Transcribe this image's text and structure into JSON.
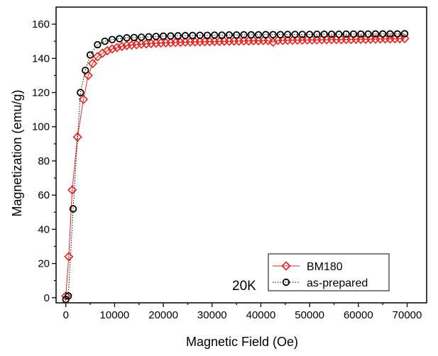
{
  "chart_data": {
    "type": "line",
    "xlabel": "Magnetic Field (Oe)",
    "ylabel": "Magnetization (emu/g)",
    "xlim": [
      -2000,
      74000
    ],
    "ylim": [
      -3,
      170
    ],
    "xticks": [
      0,
      10000,
      20000,
      30000,
      40000,
      50000,
      60000,
      70000
    ],
    "yticks": [
      0,
      20,
      40,
      60,
      80,
      100,
      120,
      140,
      160
    ],
    "annotation": "20K",
    "legend_position": "bottom-right",
    "grid": false,
    "series": [
      {
        "name": "BM180",
        "color": "#e8211c",
        "marker": "diamond-open",
        "line": "solid",
        "x": [
          0,
          600,
          1300,
          2400,
          3600,
          4600,
          5500,
          6500,
          7500,
          8500,
          9500,
          10500,
          11500,
          12500,
          13500,
          14500,
          15500,
          16500,
          17500,
          18500,
          19500,
          20500,
          21500,
          22500,
          23500,
          24500,
          25500,
          26500,
          27500,
          28500,
          29500,
          30500,
          31500,
          32500,
          33500,
          34500,
          35500,
          36500,
          37500,
          38500,
          39500,
          40500,
          41500,
          42500,
          43500,
          44500,
          45500,
          46500,
          47500,
          48500,
          49500,
          50500,
          51500,
          52500,
          53500,
          54500,
          55500,
          56500,
          57500,
          58500,
          59500,
          60500,
          61500,
          62500,
          63500,
          64500,
          65500,
          66500,
          67500,
          68500,
          69500
        ],
        "values": [
          1,
          24,
          63,
          94,
          116,
          130,
          137,
          141,
          143,
          144.5,
          145.5,
          146.3,
          147,
          147.5,
          147.8,
          148,
          148.3,
          148.5,
          148.7,
          148.9,
          149,
          149.1,
          149.2,
          149.3,
          149.4,
          149.5,
          149.6,
          149.6,
          149.7,
          149.8,
          149.8,
          149.9,
          149.9,
          150,
          150,
          150.1,
          150.1,
          150.2,
          150.2,
          150.3,
          150.3,
          150.4,
          150.4,
          149.5,
          150.5,
          150.5,
          150.6,
          150.6,
          150.7,
          150.7,
          150.8,
          150.8,
          150.8,
          150.9,
          150.9,
          151,
          151,
          151,
          151.1,
          151.1,
          151.2,
          151.2,
          151.2,
          151.3,
          151.3,
          151.4,
          151.4,
          151.4,
          151.5,
          151.5,
          151.6
        ]
      },
      {
        "name": "as-prepared",
        "color": "#000000",
        "marker": "circle-open",
        "line": "dotted",
        "x": [
          0,
          500,
          1500,
          3000,
          4000,
          5000,
          6500,
          8000,
          9500,
          11000,
          12500,
          14000,
          15500,
          17000,
          18500,
          20000,
          21500,
          23000,
          24500,
          26000,
          27500,
          29000,
          30500,
          32000,
          33500,
          35000,
          36500,
          38000,
          39500,
          41000,
          42500,
          44000,
          45500,
          47000,
          48500,
          50000,
          51500,
          53000,
          54500,
          56000,
          57500,
          59000,
          60500,
          62000,
          63500,
          65000,
          66500,
          68000,
          69500
        ],
        "values": [
          -1,
          1,
          52,
          120,
          133,
          142,
          148,
          150,
          151,
          151.5,
          152,
          152.2,
          152.4,
          152.6,
          152.8,
          153,
          153.1,
          153.2,
          153.3,
          153.4,
          153.5,
          153.5,
          153.6,
          153.6,
          153.7,
          153.7,
          153.8,
          153.8,
          153.8,
          153.9,
          153.9,
          153.9,
          154,
          154,
          154,
          154,
          154.1,
          154.1,
          154.1,
          154.1,
          154.2,
          154.2,
          154.2,
          154.2,
          154.3,
          154.3,
          154.3,
          154.3,
          154.4
        ]
      }
    ]
  }
}
